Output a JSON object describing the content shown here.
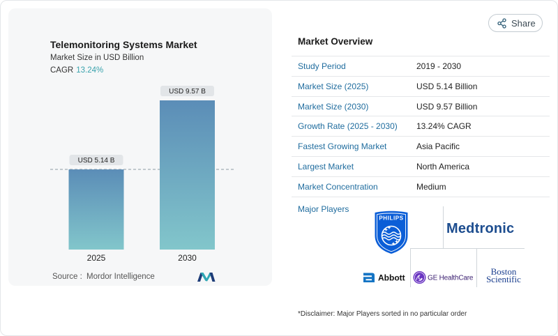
{
  "theme": {
    "accent": "#3aa3ad",
    "label_blue": "#1f6c9e",
    "panel_bg": "#f6f7f8",
    "divider": "#e5e7e9"
  },
  "share": {
    "label": "Share",
    "icon": "share-icon"
  },
  "chart_panel": {
    "cagr_label": "CAGR",
    "cagr_value": "13.24%",
    "source_label": "Source :",
    "source_name": "Mordor Intelligence",
    "source_logo": "mordor-intelligence-logo"
  },
  "chart_data": {
    "type": "bar",
    "title": "Telemonitoring Systems Market",
    "subtitle": "Market Size in USD Billion",
    "categories": [
      "2025",
      "2030"
    ],
    "values": [
      5.14,
      9.57
    ],
    "data_labels": [
      "USD 5.14 B",
      "USD 9.57 B"
    ],
    "reference_line": {
      "value": 5.14,
      "dashed": true
    },
    "grid": false,
    "colors": {
      "bar_top": "#5b8db7",
      "bar_bottom": "#82c6cb",
      "label_bg": "#e2e5e8",
      "reference_line": "#8f9ba5"
    }
  },
  "overview": {
    "heading": "Market Overview",
    "rows": [
      {
        "label": "Study Period",
        "value": "2019 - 2030"
      },
      {
        "label": "Market Size (2025)",
        "value": "USD 5.14 Billion"
      },
      {
        "label": "Market Size (2030)",
        "value": "USD 9.57 Billion"
      },
      {
        "label": "Growth Rate (2025 - 2030)",
        "value": "13.24% CAGR"
      },
      {
        "label": "Fastest Growing Market",
        "value": "Asia Pacific"
      },
      {
        "label": "Largest Market",
        "value": "North America"
      },
      {
        "label": "Market Concentration",
        "value": "Medium"
      }
    ],
    "major_players_label": "Major Players",
    "major_players": {
      "philips": "PHILIPS",
      "medtronic": "Medtronic",
      "abbott": "Abbott",
      "ge_healthcare": "GE HealthCare",
      "boston_scientific": [
        "Boston",
        "Scientific"
      ]
    },
    "disclaimer": "*Disclaimer: Major Players sorted in no particular order"
  }
}
